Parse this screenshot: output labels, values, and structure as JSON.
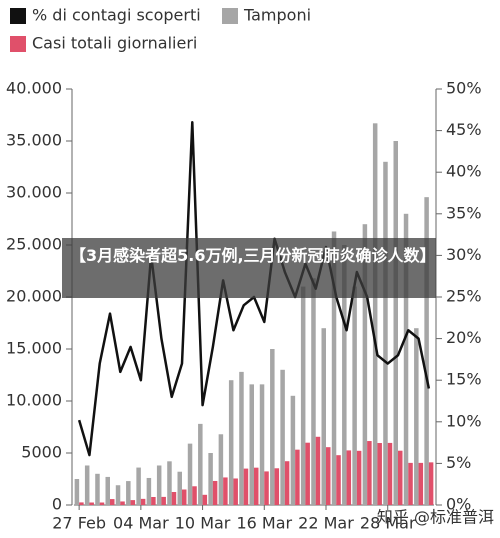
{
  "chart_data": {
    "type": "bar",
    "overlay_title": "【3月感染者超5.6万例,三月份新冠肺炎确诊人数】",
    "watermark": "知乎 @标准普洱",
    "categories": [
      "27 Feb",
      null,
      null,
      null,
      null,
      null,
      "04 Mar",
      null,
      null,
      null,
      null,
      null,
      "10 Mar",
      null,
      null,
      null,
      null,
      null,
      "16 Mar",
      null,
      null,
      null,
      null,
      null,
      "22 Mar",
      null,
      null,
      null,
      null,
      null,
      "28 Mar",
      null,
      null,
      null,
      null
    ],
    "series": [
      {
        "name": "% di contagi scoperti",
        "type": "line",
        "axis": "y2",
        "color": "#111111",
        "values": [
          10.2,
          6,
          17,
          23,
          16,
          19,
          15,
          30,
          20,
          13,
          17,
          46,
          12,
          19,
          27,
          21,
          24,
          25,
          22,
          32,
          28,
          25,
          29,
          26,
          31,
          25,
          21,
          28,
          25,
          18,
          17,
          18,
          21,
          20,
          14
        ]
      },
      {
        "name": "Tamponi",
        "type": "bar",
        "color": "#a6a6a6",
        "values": [
          2500,
          3800,
          3000,
          2700,
          1900,
          2300,
          3600,
          2600,
          3800,
          4200,
          3200,
          5900,
          7800,
          5000,
          6800,
          12000,
          12800,
          11600,
          11600,
          15000,
          13000,
          10500,
          21000,
          21800,
          17000,
          26300,
          25000,
          21000,
          27000,
          36700,
          33000,
          35000,
          28000,
          17000,
          29600
        ]
      },
      {
        "name": "Casi totali giornalieri",
        "type": "bar",
        "color": "#e0506a",
        "values": [
          250,
          240,
          240,
          570,
          340,
          470,
          590,
          770,
          780,
          1250,
          1490,
          1800,
          980,
          2310,
          2650,
          2550,
          3500,
          3590,
          3230,
          3530,
          4210,
          5320,
          5990,
          6560,
          5560,
          4790,
          5250,
          5210,
          6150,
          5960,
          5970,
          5220,
          4050,
          4050,
          4100
        ]
      }
    ],
    "ylim": [
      0,
      40000
    ],
    "yticks": [
      0,
      5000,
      {
        "value": 10000,
        "label": "10.000"
      },
      {
        "value": 15000,
        "label": "15.000"
      },
      {
        "value": 20000,
        "label": "20.000"
      },
      {
        "value": 25000,
        "label": "25.000"
      },
      {
        "value": 30000,
        "label": "30.000"
      },
      {
        "value": 35000,
        "label": "35.000"
      },
      {
        "value": 40000,
        "label": "40.000"
      }
    ],
    "y2lim": [
      0,
      50
    ],
    "y2ticks": [
      {
        "value": 0,
        "label": "0%"
      },
      {
        "value": 5,
        "label": "5%"
      },
      {
        "value": 10,
        "label": "10%"
      },
      {
        "value": 15,
        "label": "15%"
      },
      {
        "value": 20,
        "label": "20%"
      },
      {
        "value": 25,
        "label": "25%"
      },
      {
        "value": 30,
        "label": "30%"
      },
      {
        "value": 35,
        "label": "35%"
      },
      {
        "value": 40,
        "label": "40%"
      },
      {
        "value": 45,
        "label": "45%"
      },
      {
        "value": 50,
        "label": "50%"
      }
    ],
    "grid": false,
    "legend": "top-left"
  }
}
